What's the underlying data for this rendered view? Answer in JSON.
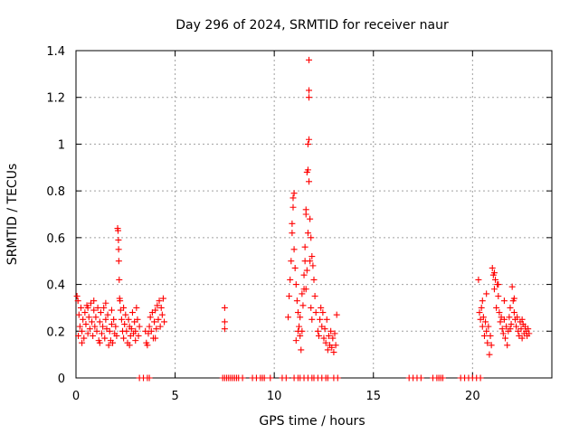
{
  "chart_data": {
    "type": "scatter",
    "title": "Day 296 of 2024, SRMTID for receiver naur",
    "xlabel": "GPS time / hours",
    "ylabel": "SRMTID / TECUs",
    "xlim": [
      0,
      24
    ],
    "ylim": [
      0,
      1.4
    ],
    "x_ticks": [
      0,
      5,
      10,
      15,
      20
    ],
    "x_tick_labels": [
      "0",
      "5",
      "10",
      "15",
      "20"
    ],
    "y_ticks": [
      0,
      0.2,
      0.4,
      0.6,
      0.8,
      1.0,
      1.2,
      1.4
    ],
    "y_tick_labels": [
      "0",
      "0.2",
      "0.4",
      "0.6",
      "0.8",
      "1",
      "1.2",
      "1.4"
    ],
    "grid": true,
    "marker": "+",
    "color": "#ff0000",
    "series": [
      {
        "name": "SRMTID",
        "points": [
          [
            0.05,
            0.35
          ],
          [
            0.1,
            0.33
          ],
          [
            0.12,
            0.18
          ],
          [
            0.15,
            0.27
          ],
          [
            0.2,
            0.22
          ],
          [
            0.25,
            0.3
          ],
          [
            0.3,
            0.2
          ],
          [
            0.35,
            0.25
          ],
          [
            0.4,
            0.17
          ],
          [
            0.45,
            0.28
          ],
          [
            0.5,
            0.23
          ],
          [
            0.55,
            0.31
          ],
          [
            0.6,
            0.19
          ],
          [
            0.65,
            0.26
          ],
          [
            0.7,
            0.21
          ],
          [
            0.75,
            0.32
          ],
          [
            0.8,
            0.24
          ],
          [
            0.85,
            0.18
          ],
          [
            0.9,
            0.29
          ],
          [
            0.95,
            0.22
          ],
          [
            1.0,
            0.26
          ],
          [
            1.05,
            0.2
          ],
          [
            1.1,
            0.3
          ],
          [
            1.15,
            0.16
          ],
          [
            1.2,
            0.24
          ],
          [
            1.25,
            0.28
          ],
          [
            1.3,
            0.19
          ],
          [
            1.35,
            0.22
          ],
          [
            1.4,
            0.3
          ],
          [
            1.45,
            0.17
          ],
          [
            1.5,
            0.25
          ],
          [
            1.55,
            0.21
          ],
          [
            1.6,
            0.27
          ],
          [
            1.65,
            0.14
          ],
          [
            1.7,
            0.2
          ],
          [
            1.75,
            0.16
          ],
          [
            1.8,
            0.23
          ],
          [
            1.85,
            0.15
          ],
          [
            1.9,
            0.25
          ],
          [
            1.95,
            0.19
          ],
          [
            2.0,
            0.22
          ],
          [
            2.05,
            0.18
          ],
          [
            2.1,
            0.64
          ],
          [
            2.12,
            0.63
          ],
          [
            2.14,
            0.59
          ],
          [
            2.15,
            0.55
          ],
          [
            2.16,
            0.5
          ],
          [
            2.18,
            0.42
          ],
          [
            2.2,
            0.34
          ],
          [
            2.22,
            0.33
          ],
          [
            2.25,
            0.29
          ],
          [
            2.3,
            0.25
          ],
          [
            2.35,
            0.2
          ],
          [
            2.4,
            0.17
          ],
          [
            2.45,
            0.23
          ],
          [
            2.5,
            0.27
          ],
          [
            2.55,
            0.2
          ],
          [
            2.6,
            0.15
          ],
          [
            2.65,
            0.25
          ],
          [
            2.7,
            0.22
          ],
          [
            2.75,
            0.18
          ],
          [
            2.8,
            0.21
          ],
          [
            2.85,
            0.28
          ],
          [
            2.9,
            0.19
          ],
          [
            2.95,
            0.24
          ],
          [
            3.0,
            0.2
          ],
          [
            3.05,
            0.3
          ],
          [
            3.1,
            0.25
          ],
          [
            3.15,
            0.18
          ],
          [
            3.2,
            0.22
          ],
          [
            3.5,
            0.2
          ],
          [
            3.55,
            0.15
          ],
          [
            3.6,
            0.14
          ],
          [
            3.65,
            0.19
          ],
          [
            3.7,
            0.22
          ],
          [
            3.75,
            0.26
          ],
          [
            3.8,
            0.2
          ],
          [
            3.85,
            0.28
          ],
          [
            3.9,
            0.17
          ],
          [
            3.95,
            0.24
          ],
          [
            4.0,
            0.29
          ],
          [
            4.05,
            0.21
          ],
          [
            4.1,
            0.31
          ],
          [
            4.15,
            0.25
          ],
          [
            4.2,
            0.33
          ],
          [
            4.25,
            0.22
          ],
          [
            4.3,
            0.3
          ],
          [
            4.35,
            0.27
          ],
          [
            4.4,
            0.34
          ],
          [
            4.45,
            0.24
          ],
          [
            0.3,
            0.15
          ],
          [
            0.6,
            0.3
          ],
          [
            0.9,
            0.33
          ],
          [
            1.2,
            0.15
          ],
          [
            1.5,
            0.32
          ],
          [
            1.8,
            0.29
          ],
          [
            2.4,
            0.3
          ],
          [
            2.7,
            0.14
          ],
          [
            3.0,
            0.16
          ],
          [
            4.0,
            0.17
          ],
          [
            7.5,
            0.3
          ],
          [
            7.5,
            0.24
          ],
          [
            7.5,
            0.21
          ],
          [
            10.7,
            0.26
          ],
          [
            10.75,
            0.35
          ],
          [
            10.8,
            0.42
          ],
          [
            10.85,
            0.5
          ],
          [
            10.9,
            0.62
          ],
          [
            10.9,
            0.66
          ],
          [
            10.95,
            0.73
          ],
          [
            10.95,
            0.77
          ],
          [
            11.0,
            0.79
          ],
          [
            11.0,
            0.55
          ],
          [
            11.05,
            0.47
          ],
          [
            11.1,
            0.4
          ],
          [
            11.15,
            0.33
          ],
          [
            11.2,
            0.28
          ],
          [
            11.25,
            0.22
          ],
          [
            11.3,
            0.18
          ],
          [
            11.35,
            0.12
          ],
          [
            11.4,
            0.2
          ],
          [
            11.45,
            0.31
          ],
          [
            11.5,
            0.38
          ],
          [
            11.5,
            0.44
          ],
          [
            11.55,
            0.5
          ],
          [
            11.55,
            0.56
          ],
          [
            11.6,
            0.72
          ],
          [
            11.6,
            0.7
          ],
          [
            11.65,
            0.88
          ],
          [
            11.7,
            0.89
          ],
          [
            11.75,
            0.84
          ],
          [
            11.7,
            1.0
          ],
          [
            11.75,
            1.02
          ],
          [
            11.75,
            1.2
          ],
          [
            11.75,
            1.23
          ],
          [
            11.75,
            1.36
          ],
          [
            11.8,
            0.68
          ],
          [
            11.85,
            0.6
          ],
          [
            11.9,
            0.52
          ],
          [
            11.95,
            0.48
          ],
          [
            12.0,
            0.42
          ],
          [
            12.05,
            0.35
          ],
          [
            12.1,
            0.28
          ],
          [
            11.65,
            0.46
          ],
          [
            11.7,
            0.62
          ],
          [
            11.8,
            0.5
          ],
          [
            11.6,
            0.38
          ],
          [
            11.85,
            0.3
          ],
          [
            11.9,
            0.25
          ],
          [
            11.4,
            0.36
          ],
          [
            11.3,
            0.26
          ],
          [
            11.2,
            0.2
          ],
          [
            11.1,
            0.16
          ],
          [
            12.2,
            0.2
          ],
          [
            12.25,
            0.18
          ],
          [
            12.3,
            0.25
          ],
          [
            12.35,
            0.3
          ],
          [
            12.4,
            0.22
          ],
          [
            12.45,
            0.28
          ],
          [
            12.5,
            0.17
          ],
          [
            12.55,
            0.21
          ],
          [
            12.6,
            0.15
          ],
          [
            12.65,
            0.25
          ],
          [
            12.7,
            0.12
          ],
          [
            12.75,
            0.18
          ],
          [
            12.8,
            0.14
          ],
          [
            12.85,
            0.2
          ],
          [
            12.9,
            0.13
          ],
          [
            12.95,
            0.17
          ],
          [
            13.0,
            0.11
          ],
          [
            13.05,
            0.19
          ],
          [
            13.1,
            0.14
          ],
          [
            13.15,
            0.27
          ],
          [
            20.3,
            0.42
          ],
          [
            20.35,
            0.28
          ],
          [
            20.4,
            0.25
          ],
          [
            20.45,
            0.3
          ],
          [
            20.5,
            0.22
          ],
          [
            20.55,
            0.26
          ],
          [
            20.6,
            0.18
          ],
          [
            20.65,
            0.24
          ],
          [
            20.7,
            0.2
          ],
          [
            20.75,
            0.15
          ],
          [
            20.8,
            0.22
          ],
          [
            20.85,
            0.1
          ],
          [
            20.9,
            0.18
          ],
          [
            20.95,
            0.14
          ],
          [
            21.0,
            0.47
          ],
          [
            21.05,
            0.44
          ],
          [
            21.1,
            0.38
          ],
          [
            21.15,
            0.42
          ],
          [
            21.2,
            0.3
          ],
          [
            21.25,
            0.4
          ],
          [
            21.3,
            0.35
          ],
          [
            21.35,
            0.28
          ],
          [
            21.4,
            0.24
          ],
          [
            21.45,
            0.26
          ],
          [
            21.5,
            0.21
          ],
          [
            21.55,
            0.19
          ],
          [
            21.6,
            0.25
          ],
          [
            21.65,
            0.17
          ],
          [
            21.7,
            0.22
          ],
          [
            21.75,
            0.14
          ],
          [
            21.8,
            0.2
          ],
          [
            21.85,
            0.26
          ],
          [
            21.9,
            0.3
          ],
          [
            21.95,
            0.23
          ],
          [
            22.0,
            0.39
          ],
          [
            22.05,
            0.33
          ],
          [
            22.1,
            0.28
          ],
          [
            22.15,
            0.25
          ],
          [
            22.2,
            0.22
          ],
          [
            22.25,
            0.26
          ],
          [
            22.3,
            0.2
          ],
          [
            22.35,
            0.18
          ],
          [
            22.4,
            0.24
          ],
          [
            22.45,
            0.21
          ],
          [
            22.5,
            0.17
          ],
          [
            22.55,
            0.23
          ],
          [
            22.6,
            0.19
          ],
          [
            22.65,
            0.22
          ],
          [
            22.7,
            0.2
          ],
          [
            22.75,
            0.18
          ],
          [
            22.8,
            0.21
          ],
          [
            22.85,
            0.19
          ],
          [
            20.5,
            0.33
          ],
          [
            20.7,
            0.36
          ],
          [
            21.1,
            0.45
          ],
          [
            21.3,
            0.4
          ],
          [
            21.6,
            0.33
          ],
          [
            21.9,
            0.21
          ],
          [
            22.1,
            0.34
          ],
          [
            22.5,
            0.25
          ],
          [
            3.2,
            0
          ],
          [
            3.4,
            0
          ],
          [
            3.6,
            0
          ],
          [
            3.7,
            0
          ],
          [
            7.4,
            0
          ],
          [
            7.5,
            0
          ],
          [
            7.6,
            0
          ],
          [
            7.7,
            0
          ],
          [
            7.8,
            0
          ],
          [
            7.9,
            0
          ],
          [
            8.0,
            0
          ],
          [
            8.1,
            0
          ],
          [
            8.2,
            0
          ],
          [
            8.4,
            0
          ],
          [
            8.9,
            0
          ],
          [
            9.1,
            0
          ],
          [
            9.3,
            0
          ],
          [
            9.4,
            0
          ],
          [
            9.5,
            0
          ],
          [
            9.8,
            0
          ],
          [
            10.4,
            0
          ],
          [
            10.6,
            0
          ],
          [
            11.0,
            0
          ],
          [
            11.2,
            0
          ],
          [
            11.3,
            0
          ],
          [
            11.5,
            0
          ],
          [
            11.7,
            0
          ],
          [
            11.9,
            0
          ],
          [
            12.0,
            0
          ],
          [
            12.2,
            0
          ],
          [
            12.4,
            0
          ],
          [
            12.6,
            0
          ],
          [
            12.7,
            0
          ],
          [
            13.0,
            0
          ],
          [
            13.2,
            0
          ],
          [
            16.8,
            0
          ],
          [
            17.0,
            0
          ],
          [
            17.2,
            0
          ],
          [
            17.4,
            0
          ],
          [
            18.0,
            0
          ],
          [
            18.2,
            0
          ],
          [
            18.3,
            0
          ],
          [
            18.4,
            0
          ],
          [
            18.5,
            0
          ],
          [
            19.4,
            0
          ],
          [
            19.6,
            0
          ],
          [
            19.8,
            0
          ],
          [
            20.0,
            0
          ],
          [
            20.2,
            0
          ],
          [
            20.4,
            0
          ]
        ]
      }
    ]
  }
}
